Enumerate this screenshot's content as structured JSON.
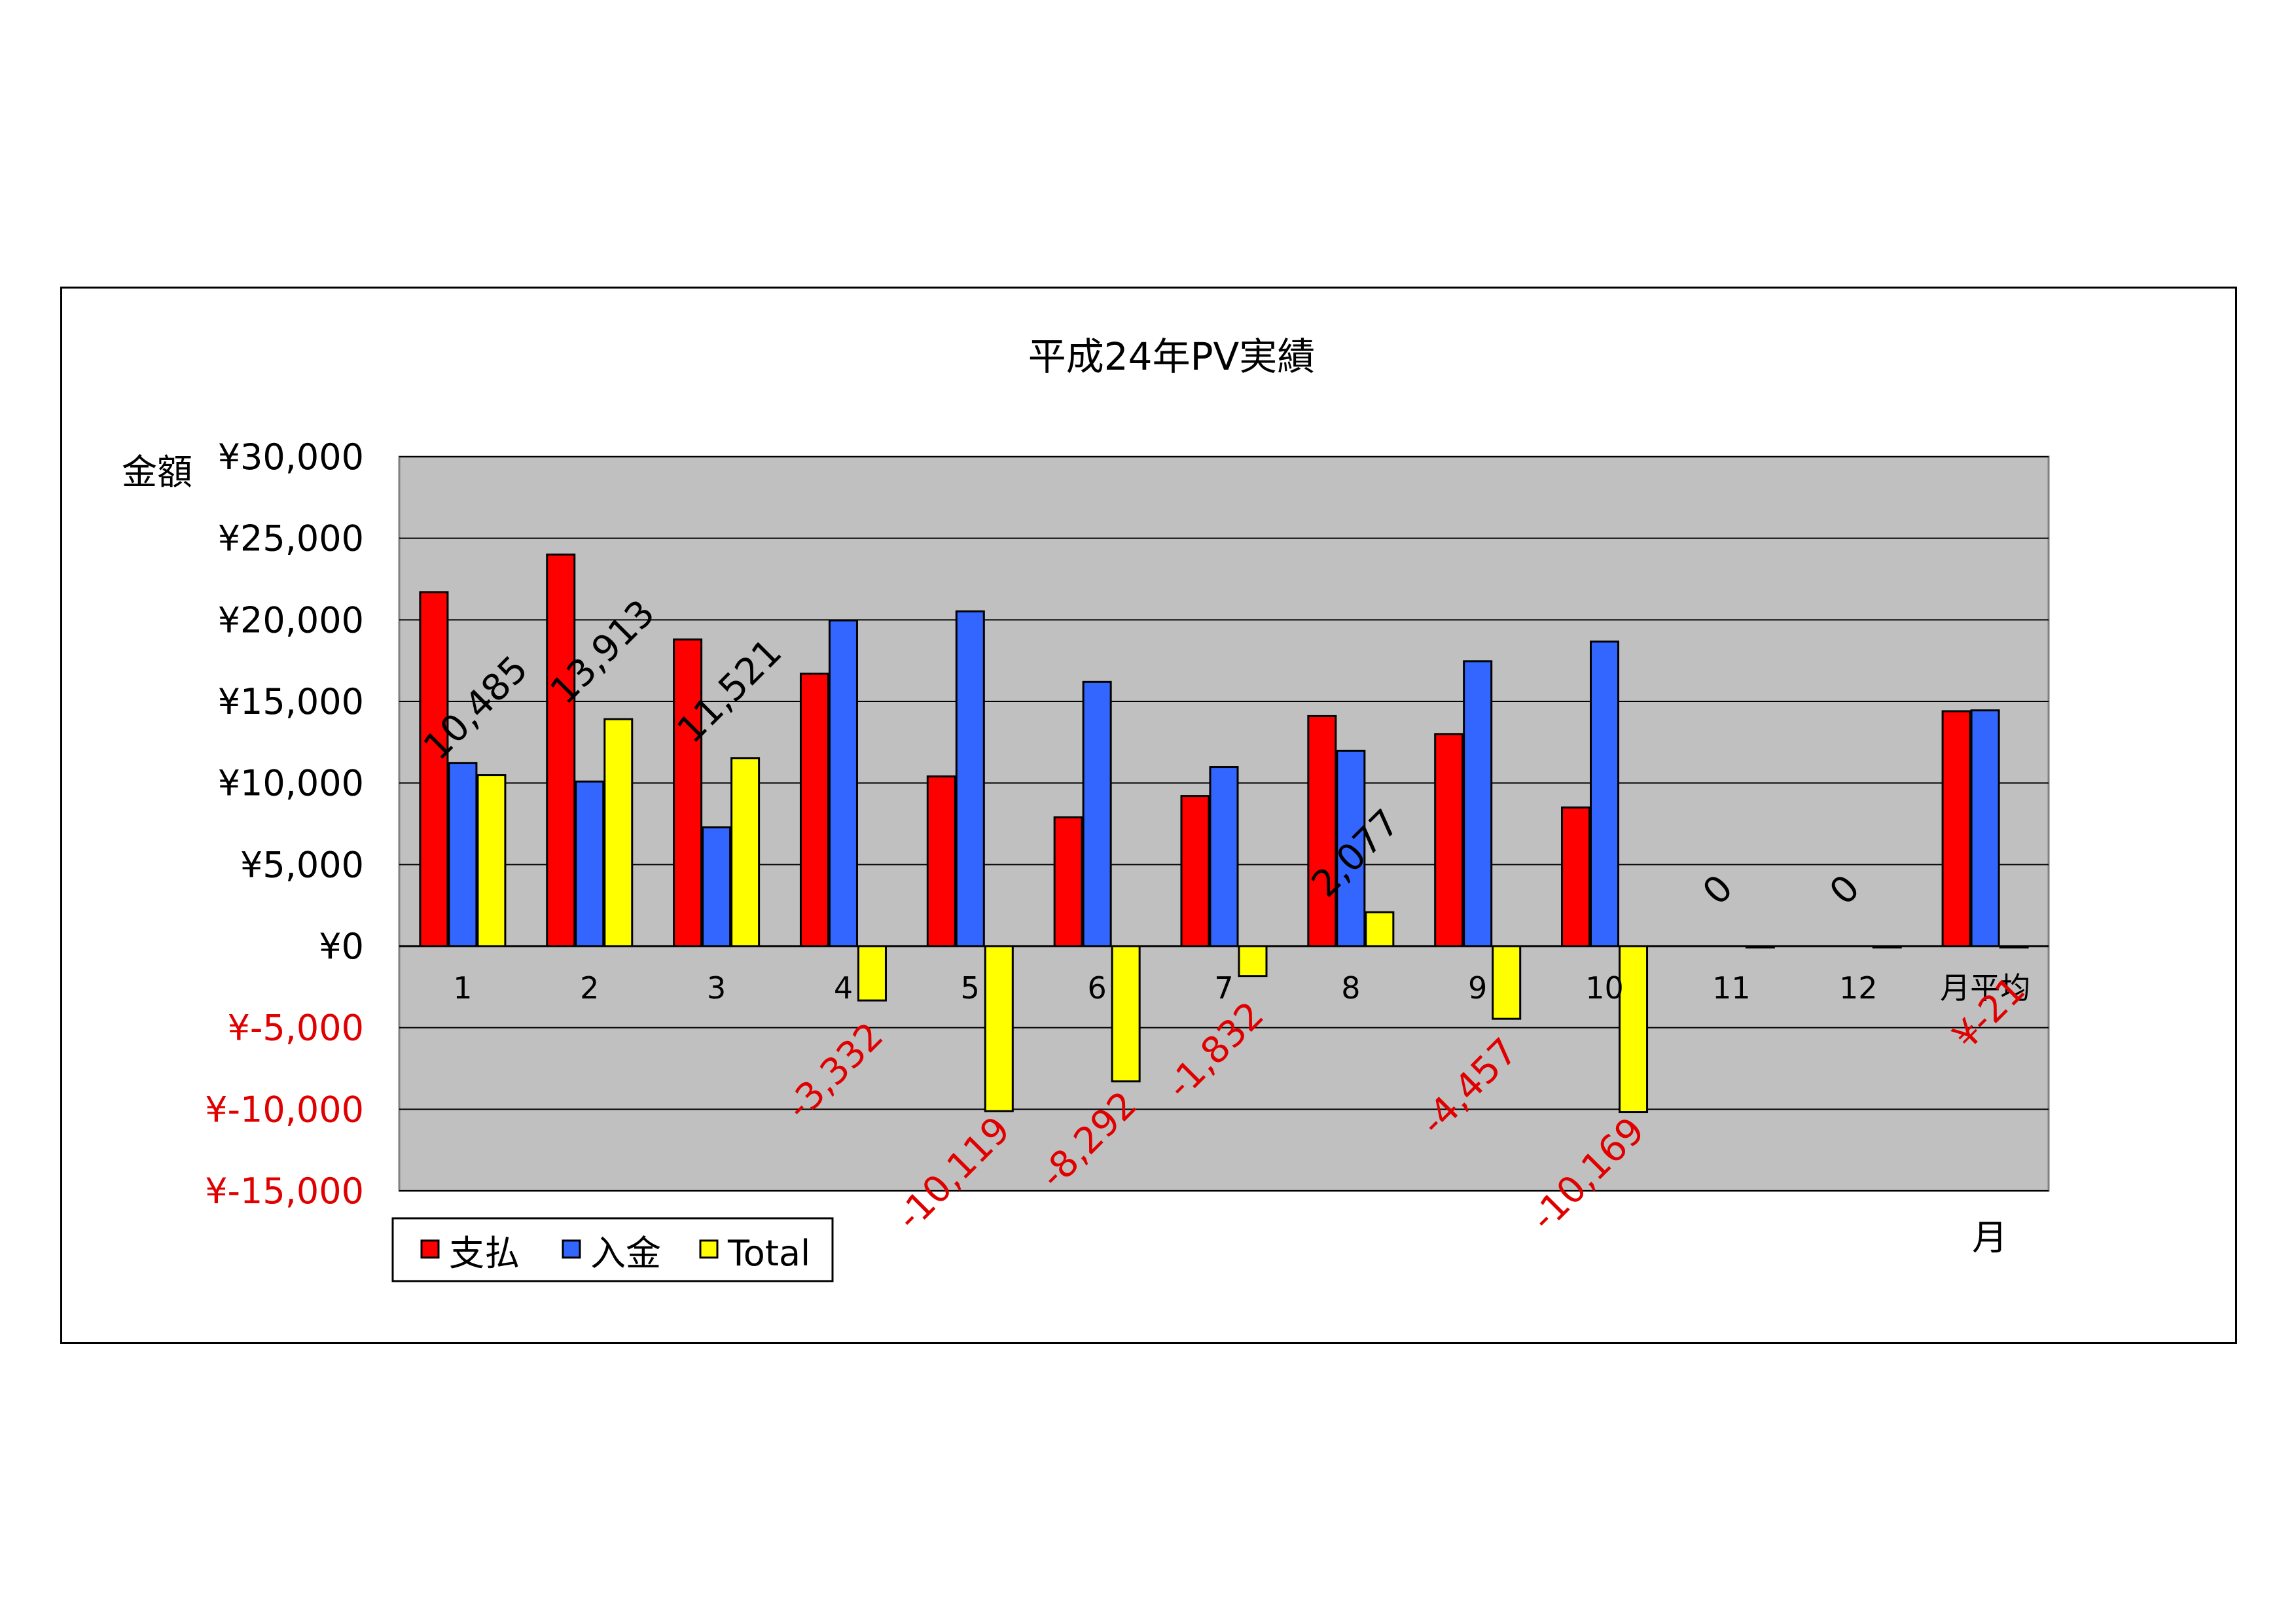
{
  "chart_data": {
    "type": "bar",
    "title": "平成24年PV実績",
    "ylabel": "金額",
    "xlabel": "月",
    "categories": [
      "1",
      "2",
      "3",
      "4",
      "5",
      "6",
      "7",
      "8",
      "9",
      "10",
      "11",
      "12",
      "月平均"
    ],
    "ylim": [
      -15000,
      30000
    ],
    "ytick_step": 5000,
    "yticks": [
      "¥30,000",
      "¥25,000",
      "¥20,000",
      "¥15,000",
      "¥10,000",
      "¥5,000",
      "¥0",
      "¥-5,000",
      "¥-10,000",
      "¥-15,000"
    ],
    "grid": true,
    "legend_position": "bottom-left",
    "series": [
      {
        "name": "支払",
        "color": "#ff0000",
        "values": [
          21700,
          24000,
          18800,
          16700,
          10400,
          7900,
          9200,
          14100,
          13000,
          8500,
          null,
          null,
          14400
        ]
      },
      {
        "name": "入金",
        "color": "#3366ff",
        "values": [
          11215,
          10087,
          7279,
          19968,
          20519,
          16192,
          10968,
          11977,
          17457,
          18669,
          null,
          null,
          14450
        ]
      },
      {
        "name": "Total",
        "color": "#ffff00",
        "values": [
          10485,
          13913,
          11521,
          -3332,
          -10119,
          -8292,
          -1832,
          2077,
          -4457,
          -10169,
          0,
          0,
          -21
        ]
      }
    ],
    "data_labels": [
      "10,485",
      "13,913",
      "11,521",
      "-3,332",
      "-10,119",
      "-8,292",
      "-1,832",
      "2,077",
      "-4,457",
      "-10,169",
      "0",
      "0",
      "¥-21"
    ],
    "colors": {
      "positive_label": "#000000",
      "negative_label": "#e00000",
      "plot_background": "#c0c0c0"
    }
  }
}
